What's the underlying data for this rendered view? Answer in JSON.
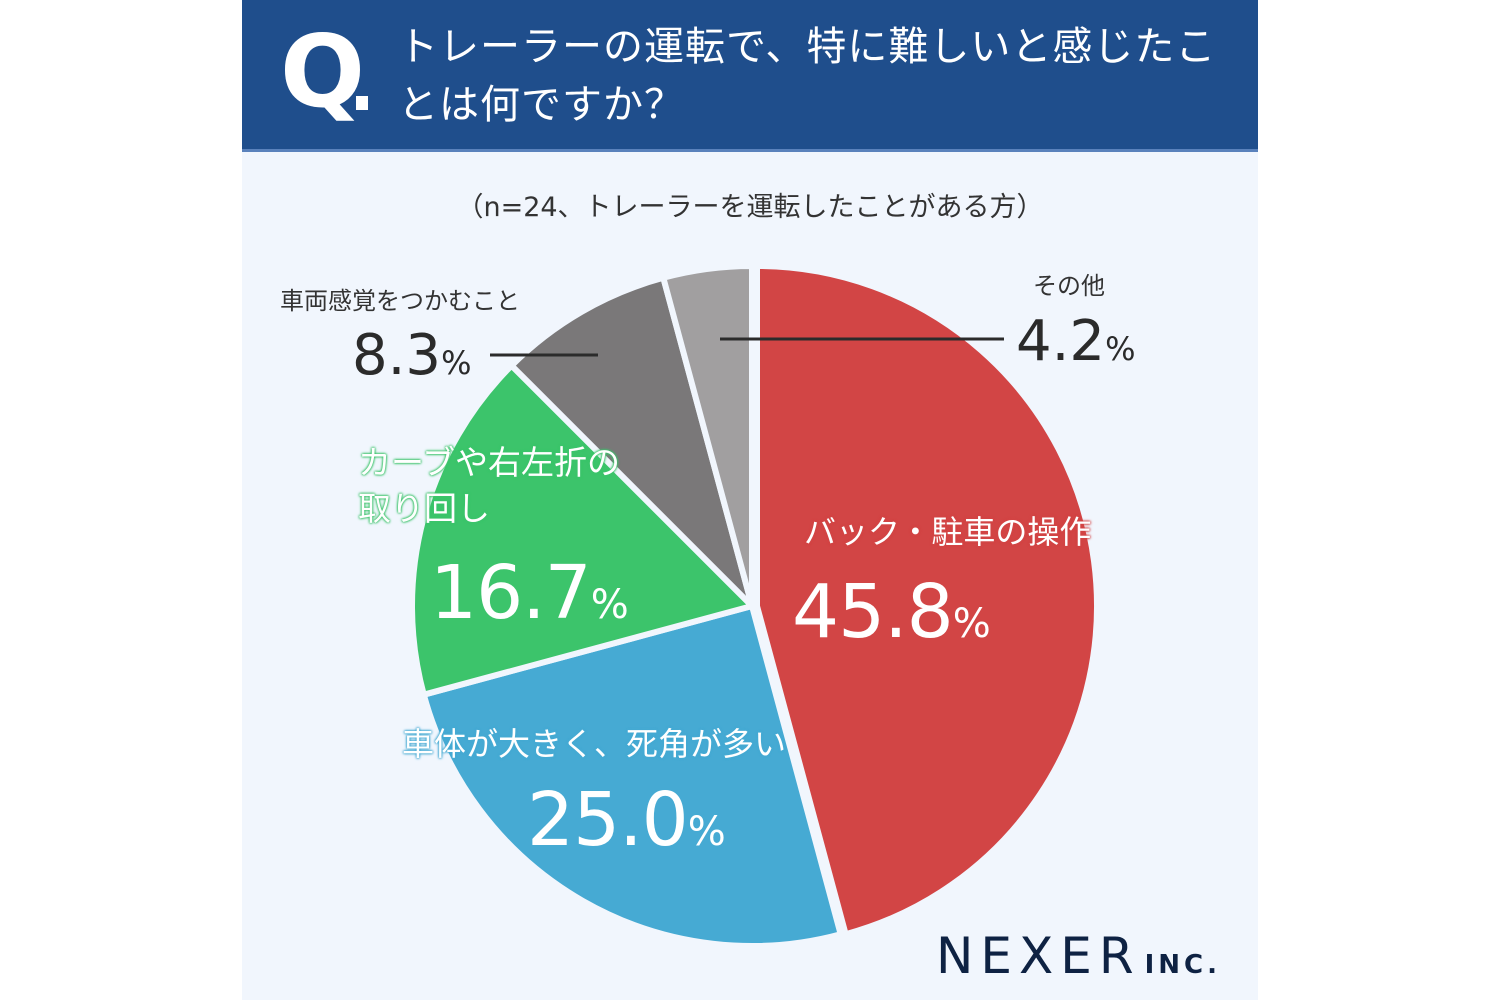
{
  "header": {
    "q_mark": "Q",
    "question": "トレーラーの運転で、特に難しいと感じたことは何ですか？"
  },
  "subtitle": "（n=24、トレーラーを運転したことがある方）",
  "slices": [
    {
      "label": "バック・駐車の操作",
      "value_text": "45.8",
      "pct": "%",
      "color": "#D24545"
    },
    {
      "label": "車体が大きく、死角が多い",
      "value_text": "25.0",
      "pct": "%",
      "color": "#46AAD3"
    },
    {
      "label_line1": "カーブや右左折の",
      "label_line2": "取り回し",
      "value_text": "16.7",
      "pct": "%",
      "color": "#3CC46B"
    },
    {
      "label": "車両感覚をつかむこと",
      "value_text": "8.3",
      "pct": "%",
      "color": "#7A7879"
    },
    {
      "label": "その他",
      "value_text": "4.2",
      "pct": "%",
      "color": "#A19FA0"
    }
  ],
  "logo": {
    "name": "NEXER",
    "suffix": "INC."
  },
  "colors": {
    "header_bg": "#1F4E8C",
    "panel_bg": "#F1F6FD"
  },
  "chart_data": {
    "type": "pie",
    "title": "トレーラーの運転で、特に難しいと感じたことは何ですか？",
    "subtitle": "（n=24、トレーラーを運転したことがある方）",
    "categories": [
      "バック・駐車の操作",
      "車体が大きく、死角が多い",
      "カーブや右左折の取り回し",
      "車両感覚をつかむこと",
      "その他"
    ],
    "values": [
      45.8,
      25.0,
      16.7,
      8.3,
      4.2
    ],
    "unit": "%",
    "colors": [
      "#D24545",
      "#46AAD3",
      "#3CC46B",
      "#7A7879",
      "#A19FA0"
    ],
    "start_angle": "12 o'clock, clockwise",
    "legend": "none (direct labels)"
  }
}
